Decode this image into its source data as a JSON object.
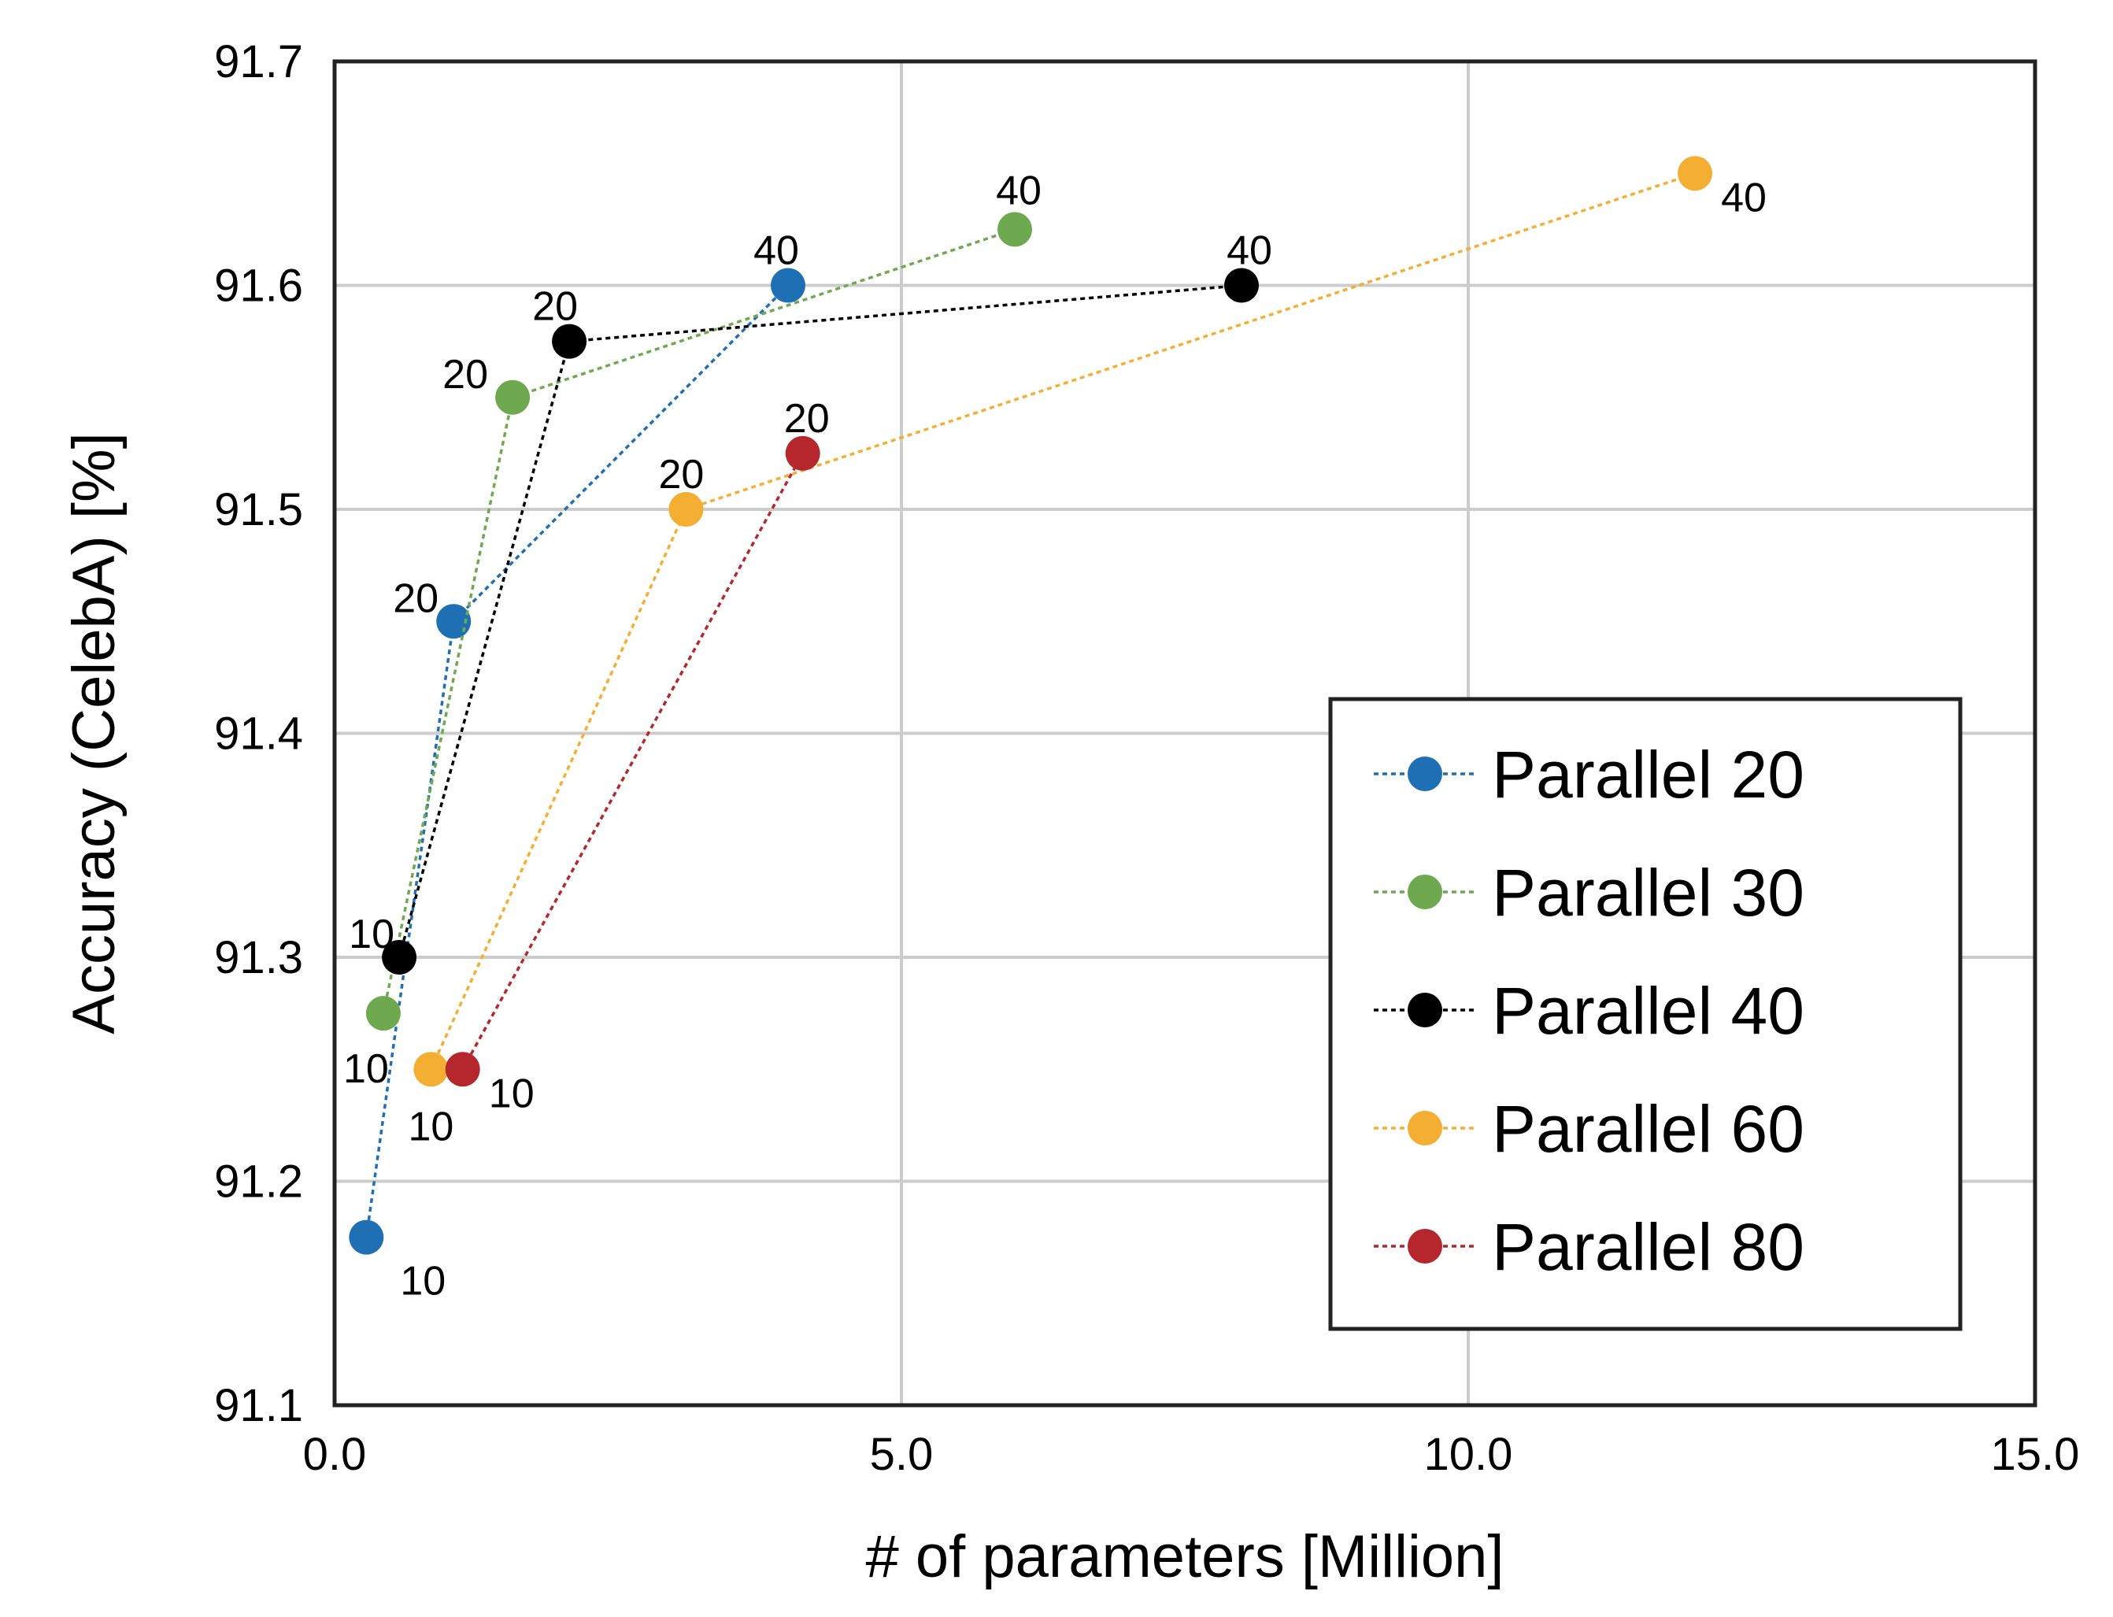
{
  "chart_data": {
    "type": "line",
    "title": "",
    "xlabel": "# of parameters [Million]",
    "ylabel": "Accuracy (CelebA) [%]",
    "xlim": [
      0.0,
      15.0
    ],
    "ylim": [
      91.1,
      91.7
    ],
    "xticks": [
      0.0,
      5.0,
      10.0,
      15.0
    ],
    "xtick_labels": [
      "0.0",
      "5.0",
      "10.0",
      "15.0"
    ],
    "yticks": [
      91.1,
      91.2,
      91.3,
      91.4,
      91.5,
      91.6,
      91.7
    ],
    "ytick_labels": [
      "91.1",
      "91.2",
      "91.3",
      "91.4",
      "91.5",
      "91.6",
      "91.7"
    ],
    "grid": true,
    "legend_position": "lower-right",
    "series": [
      {
        "name": "Parallel 20",
        "color": "#1f6fb5",
        "x": [
          0.28,
          1.05,
          4.0
        ],
        "y": [
          91.175,
          91.45,
          91.6
        ],
        "point_labels": [
          "10",
          "20",
          "40"
        ]
      },
      {
        "name": "Parallel 30",
        "color": "#6ea84f",
        "x": [
          0.43,
          1.57,
          6.0
        ],
        "y": [
          91.275,
          91.55,
          91.625
        ],
        "point_labels": [
          "10",
          "20",
          "40"
        ]
      },
      {
        "name": "Parallel 40",
        "color": "#000000",
        "x": [
          0.57,
          2.07,
          8.0
        ],
        "y": [
          91.3,
          91.575,
          91.6
        ],
        "point_labels": [
          "10",
          "20",
          "40"
        ]
      },
      {
        "name": "Parallel 60",
        "color": "#f4ae32",
        "x": [
          0.85,
          3.1,
          12.0
        ],
        "y": [
          91.25,
          91.5,
          91.65
        ],
        "point_labels": [
          "10",
          "20",
          "40"
        ]
      },
      {
        "name": "Parallel 80",
        "color": "#b5272d",
        "x": [
          1.13,
          4.13
        ],
        "y": [
          91.25,
          91.525
        ],
        "point_labels": [
          "10",
          "20"
        ]
      }
    ]
  }
}
